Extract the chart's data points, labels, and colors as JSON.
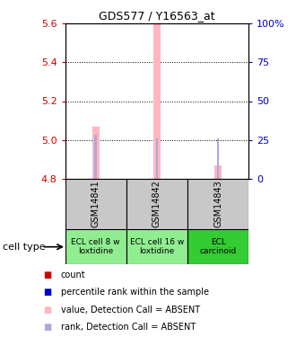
{
  "title": "GDS577 / Y16563_at",
  "samples": [
    "GSM14841",
    "GSM14842",
    "GSM14843"
  ],
  "cell_types": [
    "ECL cell 8 w\nloxtidine",
    "ECL cell 16 w\nloxtidine",
    "ECL\ncarcinoid"
  ],
  "cell_type_colors": [
    "#90EE90",
    "#90EE90",
    "#33CC33"
  ],
  "value_bars": [
    5.07,
    5.6,
    4.87
  ],
  "rank_percentiles": [
    28,
    26,
    26
  ],
  "value_bar_color": "#FFB6C1",
  "rank_bar_color": "#AAAADD",
  "count_color": "#CC0000",
  "percentile_color": "#0000CC",
  "y_min": 4.8,
  "y_max": 5.6,
  "y_ticks": [
    4.8,
    5.0,
    5.2,
    5.4,
    5.6
  ],
  "y2_labels": [
    "0",
    "25",
    "50",
    "75",
    "100%"
  ],
  "y2_ticks": [
    0,
    25,
    50,
    75,
    100
  ],
  "legend_items": [
    {
      "color": "#CC0000",
      "label": "count",
      "marker": "s"
    },
    {
      "color": "#0000CC",
      "label": "percentile rank within the sample",
      "marker": "s"
    },
    {
      "color": "#FFB6C1",
      "label": "value, Detection Call = ABSENT",
      "marker": "s"
    },
    {
      "color": "#AAAADD",
      "label": "rank, Detection Call = ABSENT",
      "marker": "s"
    }
  ],
  "left_axis_color": "#CC0000",
  "right_axis_color": "#0000CC",
  "bar_width": 0.12,
  "rank_bar_width": 0.04
}
